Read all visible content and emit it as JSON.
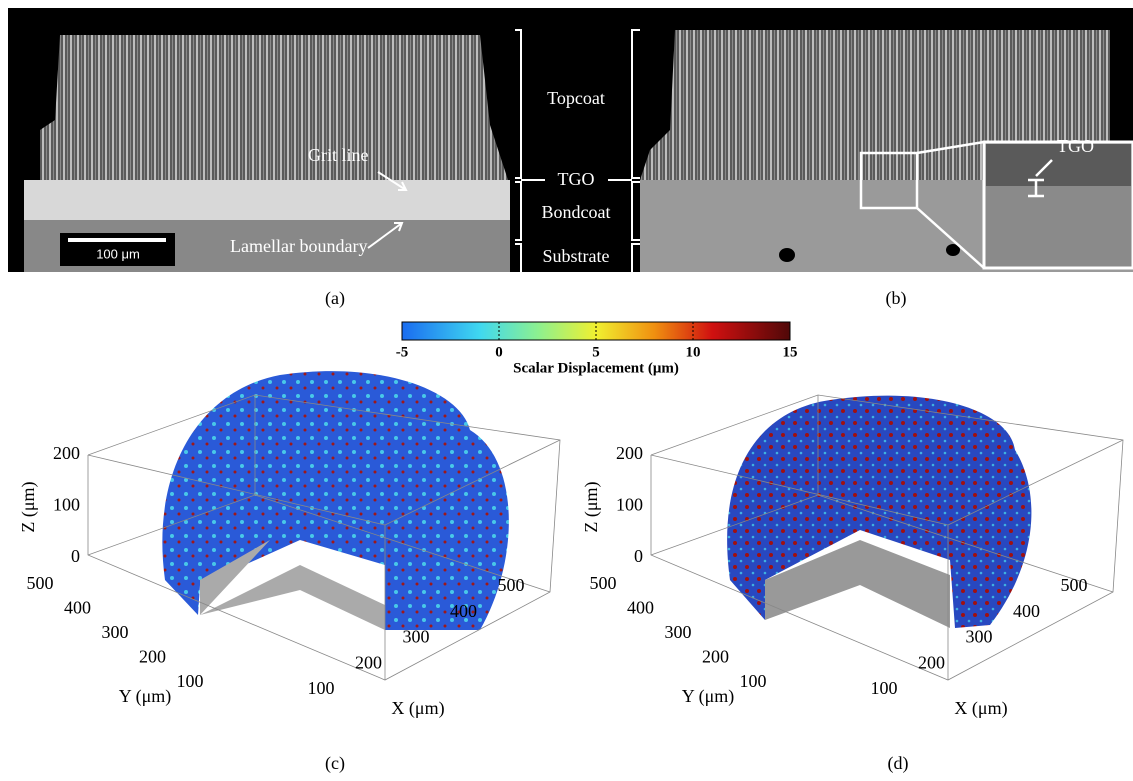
{
  "panel_a": {
    "annotations": {
      "grit_line": "Grit line",
      "lamellar_boundary": "Lamellar boundary",
      "scale_bar": "100 μm"
    },
    "caption": "(a)"
  },
  "layers": {
    "topcoat": "Topcoat",
    "tgo": "TGO",
    "bondcoat": "Bondcoat",
    "substrate": "Substrate"
  },
  "panel_b": {
    "inset_label": "TGO",
    "caption": "(b)"
  },
  "colorbar": {
    "lim": [
      -5,
      15
    ],
    "ticks": [
      -5,
      0,
      5,
      10,
      15
    ],
    "label": "Scalar Displacement (μm)"
  },
  "panel_c": {
    "z_label": "Z (μm)",
    "y_label": "Y (μm)",
    "x_label": "X (μm)",
    "z_ticks": [
      0,
      100,
      200
    ],
    "y_ticks": [
      100,
      200,
      300,
      400,
      500
    ],
    "x_ticks": [
      100,
      200,
      300,
      400,
      500
    ],
    "caption": "(c)"
  },
  "panel_d": {
    "z_label": "Z (μm)",
    "y_label": "Y (μm)",
    "x_label": "X (μm)",
    "z_ticks": [
      0,
      100,
      200
    ],
    "y_ticks": [
      100,
      200,
      300,
      400,
      500
    ],
    "x_ticks": [
      100,
      200,
      300,
      400,
      500
    ],
    "caption": "(d)"
  }
}
